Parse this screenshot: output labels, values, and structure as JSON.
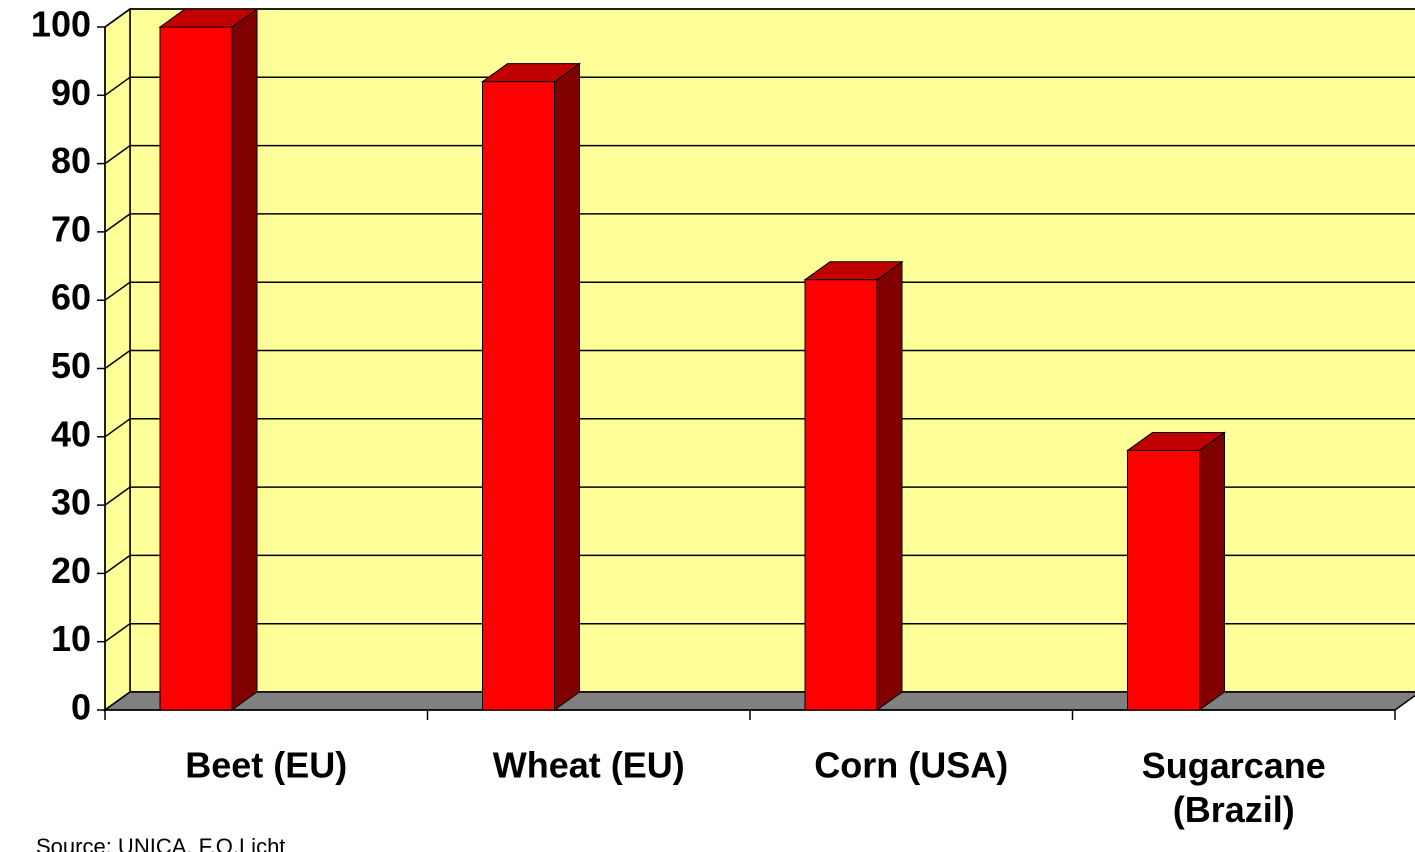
{
  "chart_data": {
    "type": "bar3d",
    "categories": [
      "Beet (EU)",
      "Wheat (EU)",
      "Corn (USA)",
      "Sugarcane (Brazil)"
    ],
    "values": [
      100,
      92,
      63,
      38
    ],
    "color": "#ff0000",
    "ylim": [
      0,
      100
    ],
    "yticks": [
      0,
      10,
      20,
      30,
      40,
      50,
      60,
      70,
      80,
      90,
      100
    ],
    "grid": true,
    "source": "Source: UNICA, F.O.Licht"
  }
}
